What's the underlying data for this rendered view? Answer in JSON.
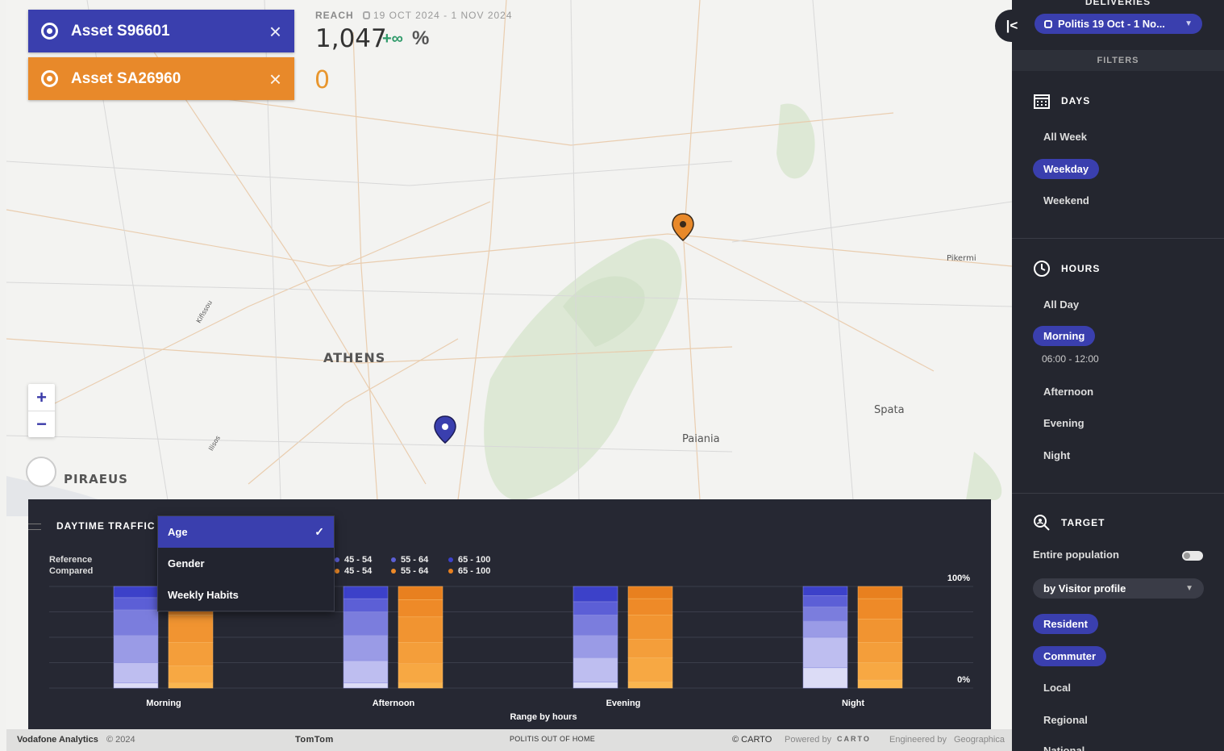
{
  "map": {
    "labels": {
      "athens": "ATHENS",
      "piraeus": "PIRAEUS",
      "paiania": "Paiania",
      "spata": "Spata",
      "pikermi": "Pikermi",
      "road1": "Kifissou",
      "road2": "Ilisos"
    }
  },
  "assets": [
    {
      "label": "Asset S96601",
      "color": "#3a3fae"
    },
    {
      "label": "Asset SA26960",
      "color": "#e8892a"
    }
  ],
  "reach": {
    "title": "REACH",
    "dates": "19 OCT 2024 - 1 NOV 2024",
    "value": "1,047",
    "delta": "+∞",
    "pct": "%",
    "value_compared": "0"
  },
  "zoom": {
    "in": "+",
    "out": "−"
  },
  "chart_panel": {
    "title": "DAYTIME TRAFFIC",
    "reference_label": "Reference",
    "compared_label": "Compared",
    "dropdown": {
      "options": [
        "Age",
        "Gender",
        "Weekly Habits"
      ],
      "selected": "Age",
      "check": "✓"
    }
  },
  "chart_data": {
    "type": "bar",
    "stacked": true,
    "normalized": true,
    "categories": [
      "Morning",
      "Afternoon",
      "Evening",
      "Night"
    ],
    "xlabel": "Range by hours",
    "ylabel": "",
    "ytick_top": "100%",
    "ytick_bottom": "0%",
    "legend_visible": [
      "45 - 54",
      "55 - 64",
      "65 - 100"
    ],
    "series_reference": [
      {
        "name": "band1",
        "values": [
          5,
          5,
          6,
          20
        ]
      },
      {
        "name": "band2",
        "values": [
          20,
          22,
          24,
          30
        ]
      },
      {
        "name": "band3",
        "values": [
          27,
          25,
          22,
          16
        ]
      },
      {
        "name": "band4",
        "values": [
          25,
          23,
          20,
          14
        ]
      },
      {
        "name": "band5",
        "values": [
          12,
          13,
          13,
          11
        ]
      },
      {
        "name": "band6",
        "values": [
          11,
          12,
          15,
          9
        ]
      }
    ],
    "series_compared": [
      {
        "name": "band1",
        "values": [
          5,
          5,
          6,
          8
        ]
      },
      {
        "name": "band2",
        "values": [
          17,
          19,
          24,
          17
        ]
      },
      {
        "name": "band3",
        "values": [
          23,
          21,
          18,
          20
        ]
      },
      {
        "name": "band4",
        "values": [
          27,
          25,
          24,
          23
        ]
      },
      {
        "name": "band5",
        "values": [
          15,
          17,
          16,
          20
        ]
      },
      {
        "name": "band6",
        "values": [
          13,
          13,
          12,
          12
        ]
      }
    ],
    "colors_reference": [
      "#dcdcf6",
      "#bebef0",
      "#9a9be6",
      "#7b7ddd",
      "#5c5fd6",
      "#3c41c9"
    ],
    "colors_compared": [
      "#fbb64f",
      "#f7a843",
      "#f49e3a",
      "#f19431",
      "#ee8a28",
      "#e8801f"
    ]
  },
  "footer": {
    "brand": "Vodafone Analytics",
    "year": "© 2024",
    "tomtom": "TomTom",
    "politis": "POLITIS OUT OF HOME",
    "carto": "© CARTO",
    "powered": "Powered by",
    "carto_logo": "CARTO",
    "engineered": "Engineered by",
    "geographica": "Geographica"
  },
  "sidebar": {
    "deliveries_title": "DELIVERIES",
    "delivery_value": "Politis 19 Oct - 1 No...",
    "filters_label": "FILTERS",
    "days": {
      "title": "DAYS",
      "options": [
        "All Week",
        "Weekday",
        "Weekend"
      ],
      "selected": "Weekday"
    },
    "hours": {
      "title": "HOURS",
      "options": [
        "All Day",
        "Morning",
        "Afternoon",
        "Evening",
        "Night"
      ],
      "selected": "Morning",
      "selected_range": "06:00 - 12:00"
    },
    "target": {
      "title": "TARGET",
      "entire_population": "Entire population",
      "profile_select": "by Visitor profile",
      "options": [
        "Resident",
        "Commuter",
        "Local",
        "Regional",
        "National"
      ],
      "selected": [
        "Resident",
        "Commuter"
      ]
    }
  }
}
